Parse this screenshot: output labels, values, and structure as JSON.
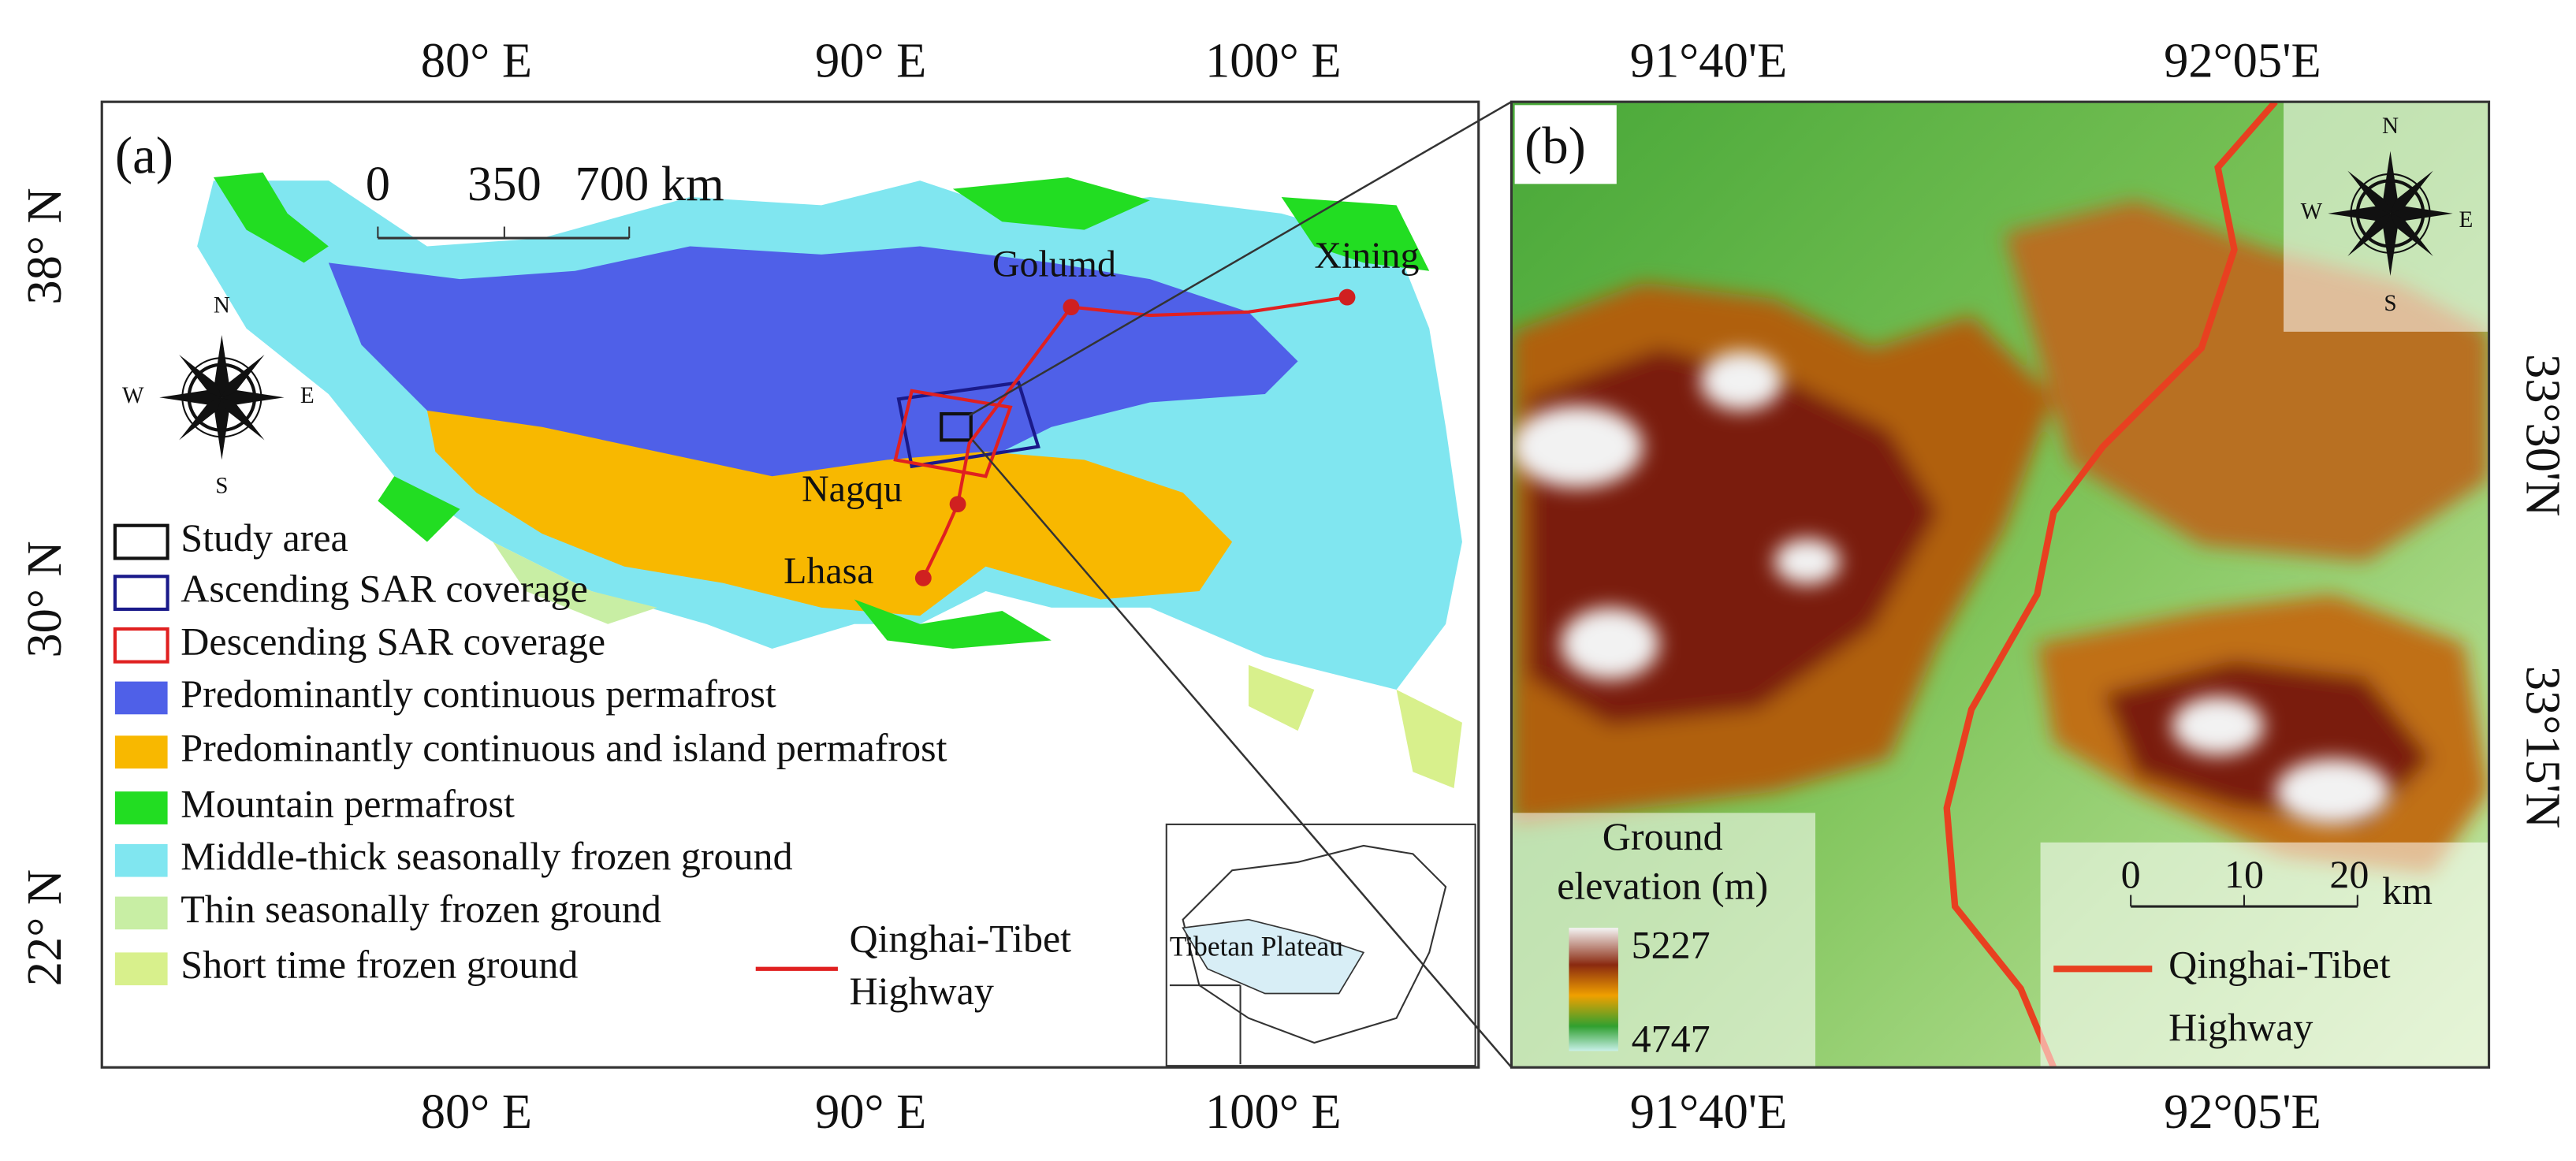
{
  "panel_a": {
    "label": "(a)",
    "top_ticks": [
      "80° E",
      "90° E",
      "100° E"
    ],
    "bottom_ticks": [
      "80° E",
      "90° E",
      "100° E"
    ],
    "left_ticks": [
      "38° N",
      "30° N",
      "22° N"
    ],
    "scale_bar": [
      "0",
      "350",
      "700 km"
    ],
    "compass": [
      "N",
      "E",
      "S",
      "W"
    ],
    "cities": [
      "Golumd",
      "Xining",
      "Nagqu",
      "Lhasa"
    ],
    "legend": [
      "Study area",
      "Ascending SAR coverage",
      "Descending SAR coverage",
      "Predominantly continuous permafrost",
      "Predominantly continuous and island permafrost",
      "Mountain permafrost",
      "Middle-thick seasonally frozen ground",
      "Thin seasonally frozen ground",
      "Short time frozen ground"
    ],
    "highway_legend": [
      "Qinghai-Tibet",
      "Highway"
    ],
    "inset_label": "Tibetan Plateau"
  },
  "panel_b": {
    "label": "(b)",
    "top_ticks": [
      "91°40'E",
      "92°05'E"
    ],
    "bottom_ticks": [
      "91°40'E",
      "92°05'E"
    ],
    "right_ticks": [
      "33°30'N",
      "33°15'N"
    ],
    "compass": [
      "N",
      "E",
      "S",
      "W"
    ],
    "elevation_title": [
      "Ground",
      "elevation (m)"
    ],
    "elevation_range": [
      "5227",
      "4747"
    ],
    "scale_bar": [
      "0",
      "10",
      "20",
      "km"
    ],
    "highway_legend": [
      "Qinghai-Tibet",
      "Highway"
    ]
  }
}
